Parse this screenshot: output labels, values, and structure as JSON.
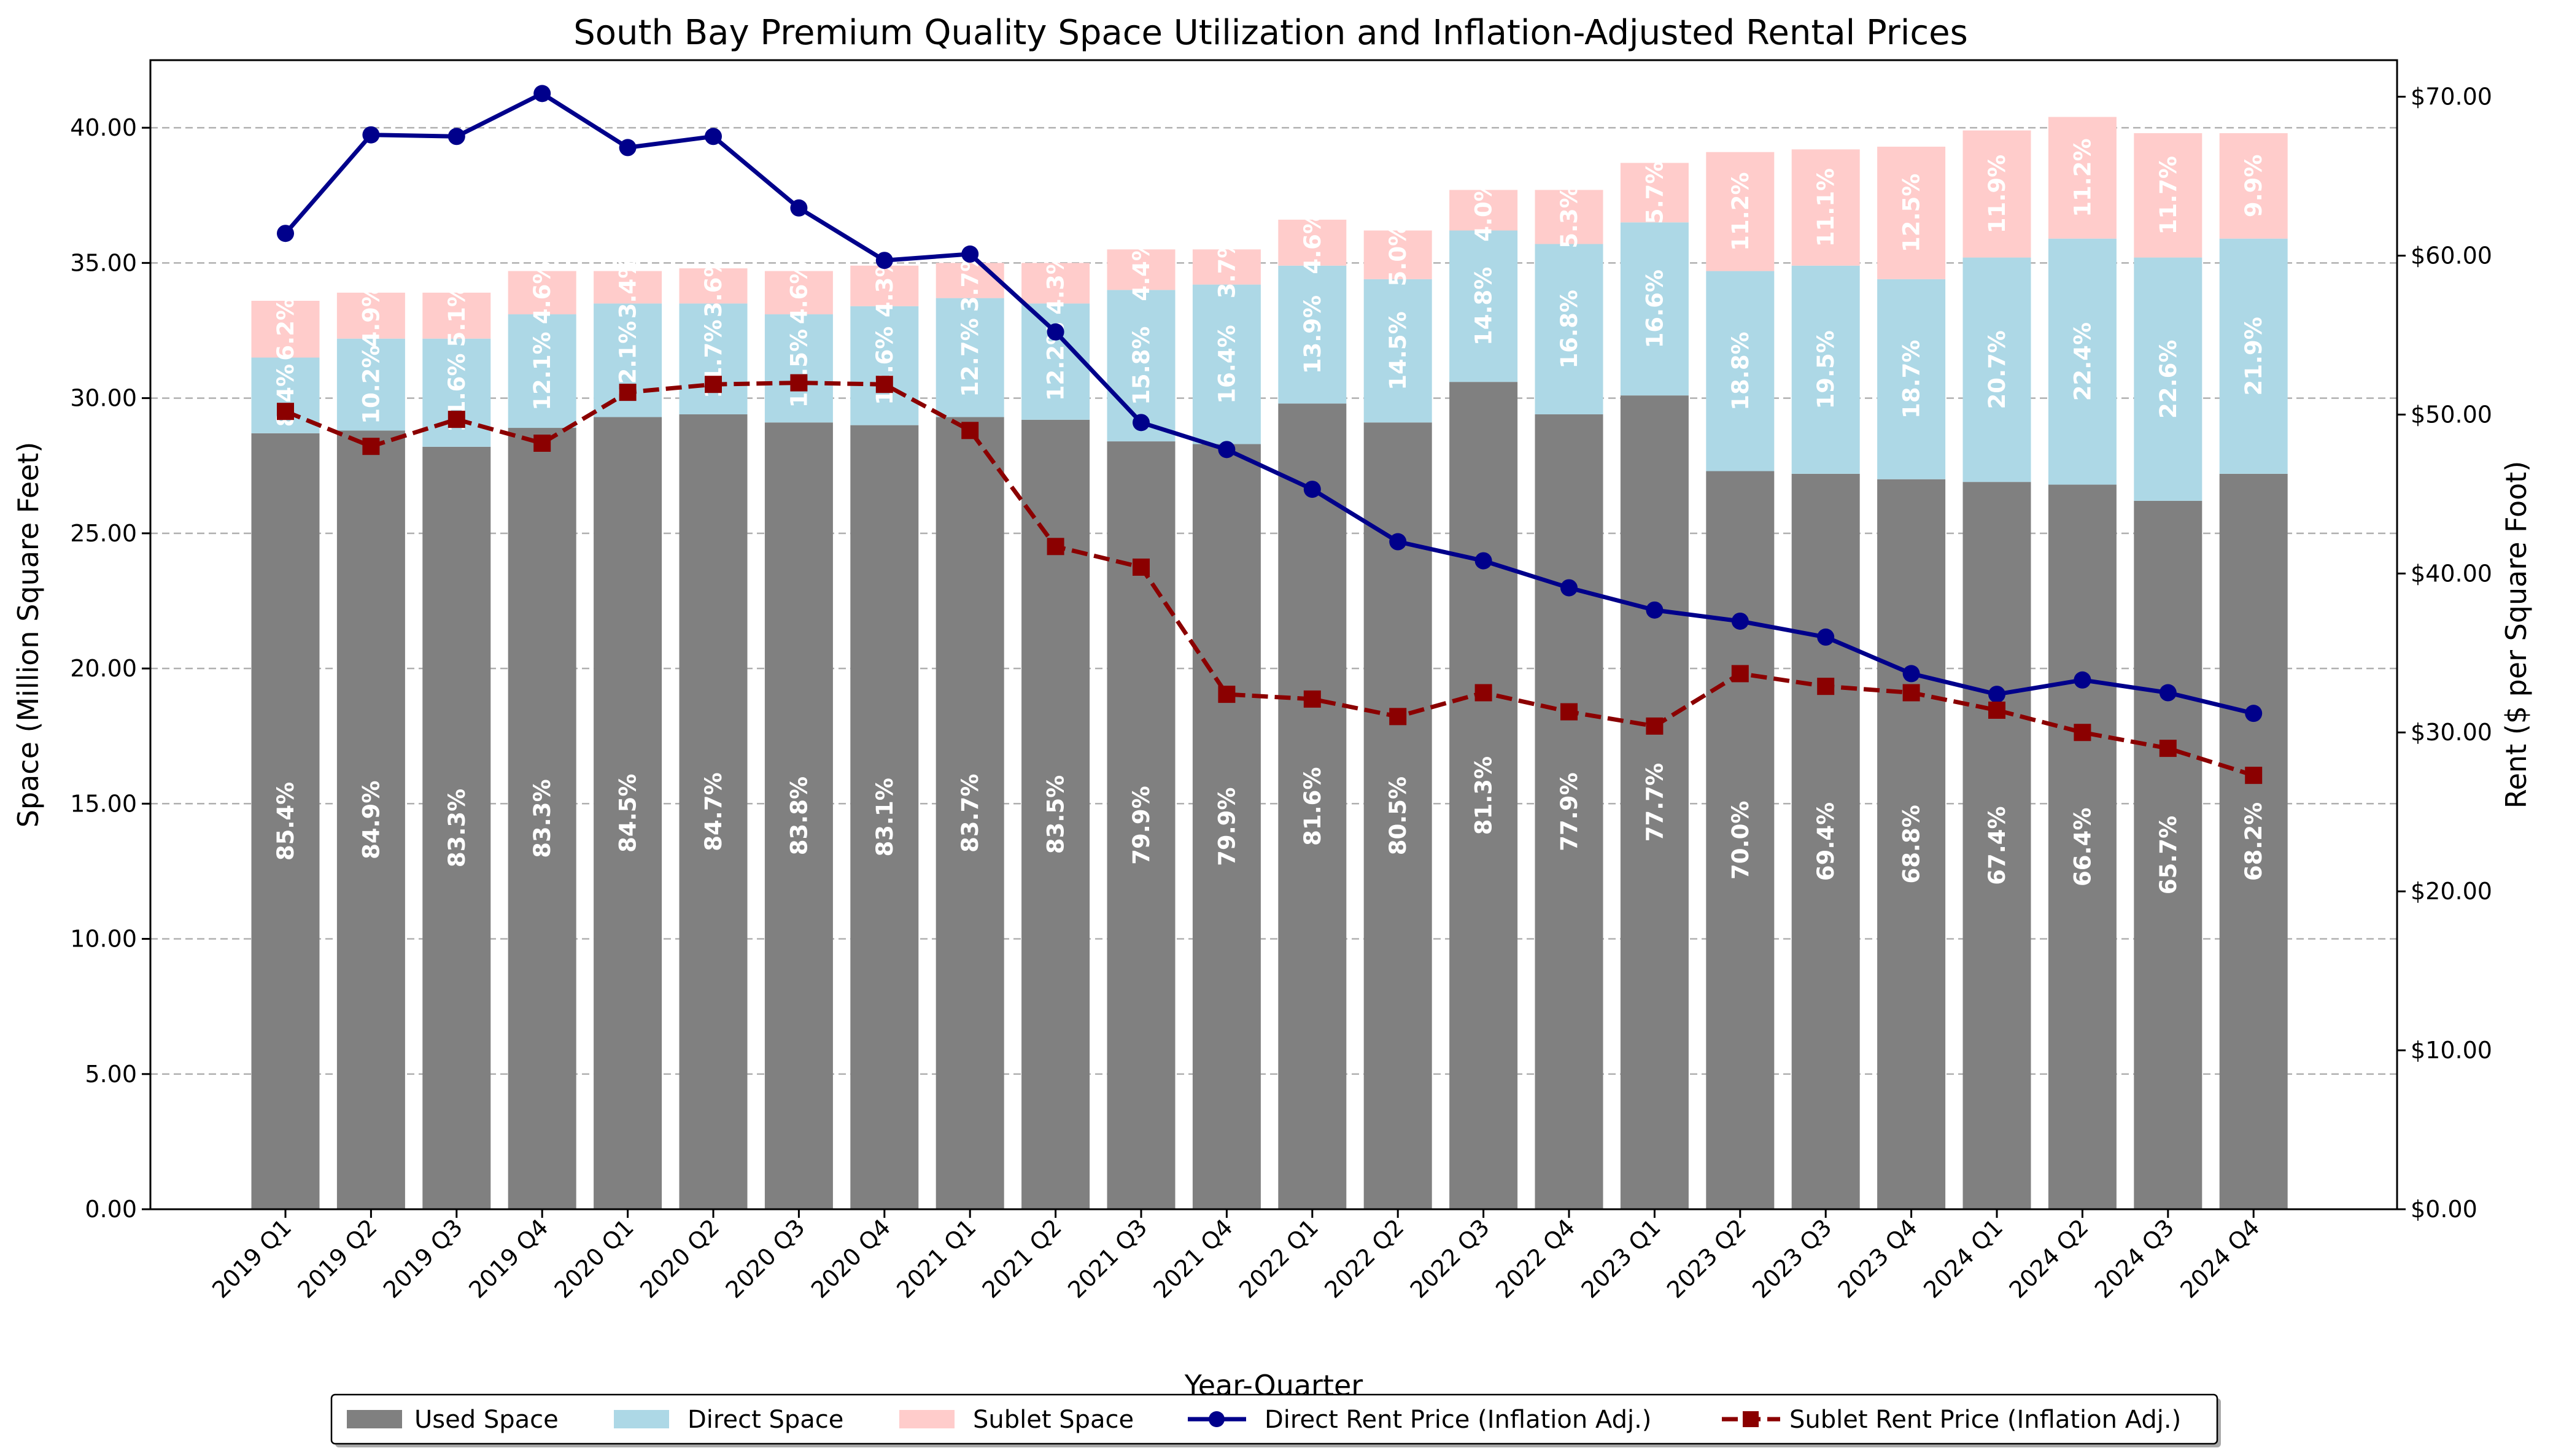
{
  "chart_data": {
    "type": "bar",
    "title": "South Bay Premium Quality Space Utilization and Inflation-Adjusted Rental Prices",
    "xlabel": "Year-Quarter",
    "ylabel": "Space (Million Square Feet)",
    "y2label": "Rent ($ per Square Foot)",
    "ylim": [
      0,
      42.5
    ],
    "y2lim": [
      0,
      72.3
    ],
    "yticks": [
      "0.00",
      "5.00",
      "10.00",
      "15.00",
      "20.00",
      "25.00",
      "30.00",
      "35.00",
      "40.00"
    ],
    "y2ticks": [
      "$0.00",
      "$10.00",
      "$20.00",
      "$30.00",
      "$40.00",
      "$50.00",
      "$60.00",
      "$70.00"
    ],
    "grid": "horizontal dashed",
    "legend_position": "bottom-center",
    "categories": [
      "2019 Q1",
      "2019 Q2",
      "2019 Q3",
      "2019 Q4",
      "2020 Q1",
      "2020 Q2",
      "2020 Q3",
      "2020 Q4",
      "2021 Q1",
      "2021 Q2",
      "2021 Q3",
      "2021 Q4",
      "2022 Q1",
      "2022 Q2",
      "2022 Q3",
      "2022 Q4",
      "2023 Q1",
      "2023 Q2",
      "2023 Q3",
      "2023 Q4",
      "2024 Q1",
      "2024 Q2",
      "2024 Q3",
      "2024 Q4"
    ],
    "series": [
      {
        "name": "Used Space",
        "kind": "bar",
        "color": "#808080",
        "values": [
          28.7,
          28.8,
          28.2,
          28.9,
          29.3,
          29.4,
          29.1,
          29.0,
          29.3,
          29.2,
          28.4,
          28.3,
          29.8,
          29.1,
          30.6,
          29.4,
          30.1,
          27.3,
          27.2,
          27.0,
          26.9,
          26.8,
          26.2,
          27.2
        ],
        "labels": [
          "85.4%",
          "84.9%",
          "83.3%",
          "83.3%",
          "84.5%",
          "84.7%",
          "83.8%",
          "83.1%",
          "83.7%",
          "83.5%",
          "79.9%",
          "79.9%",
          "81.6%",
          "80.5%",
          "81.3%",
          "77.9%",
          "77.7%",
          "70.0%",
          "69.4%",
          "68.8%",
          "67.4%",
          "66.4%",
          "65.7%",
          "68.2%"
        ]
      },
      {
        "name": "Direct Space",
        "kind": "bar",
        "color": "#add8e6",
        "values": [
          2.8,
          3.4,
          4.0,
          4.2,
          4.2,
          4.1,
          4.0,
          4.4,
          4.4,
          4.3,
          5.6,
          5.9,
          5.1,
          5.3,
          5.6,
          6.3,
          6.4,
          7.4,
          7.7,
          7.4,
          8.3,
          9.1,
          9.0,
          8.7
        ],
        "labels": [
          "8.4%",
          "10.2%",
          "11.6%",
          "12.1%",
          "12.1%",
          "11.7%",
          "11.5%",
          "12.6%",
          "12.7%",
          "12.2%",
          "15.8%",
          "16.4%",
          "13.9%",
          "14.5%",
          "14.8%",
          "16.8%",
          "16.6%",
          "18.8%",
          "19.5%",
          "18.7%",
          "20.7%",
          "22.4%",
          "22.6%",
          "21.9%"
        ]
      },
      {
        "name": "Sublet Space",
        "kind": "bar",
        "color": "#ffcccb",
        "values": [
          2.1,
          1.7,
          1.7,
          1.6,
          1.2,
          1.3,
          1.6,
          1.5,
          1.3,
          1.5,
          1.5,
          1.3,
          1.7,
          1.8,
          1.5,
          2.0,
          2.2,
          4.4,
          4.3,
          4.9,
          4.7,
          4.5,
          4.6,
          3.9
        ],
        "labels": [
          "6.2%",
          "4.9%",
          "5.1%",
          "4.6%",
          "3.4%",
          "3.6%",
          "4.6%",
          "4.3%",
          "3.7%",
          "4.3%",
          "4.4%",
          "3.7%",
          "4.6%",
          "5.0%",
          "4.0%",
          "5.3%",
          "5.7%",
          "11.2%",
          "11.1%",
          "12.5%",
          "11.9%",
          "11.2%",
          "11.7%",
          "9.9%"
        ]
      },
      {
        "name": "Direct Rent Price (Inflation Adj.)",
        "kind": "line",
        "axis": "right",
        "color": "#00008b",
        "marker": "circle",
        "line": "solid",
        "values": [
          61.4,
          67.6,
          67.5,
          70.2,
          66.8,
          67.5,
          63.0,
          59.7,
          60.1,
          55.2,
          49.5,
          47.8,
          45.3,
          42.0,
          40.8,
          39.1,
          37.7,
          37.0,
          36.0,
          33.7,
          32.4,
          33.3,
          32.5,
          31.2
        ]
      },
      {
        "name": "Sublet Rent Price (Inflation Adj.)",
        "kind": "line",
        "axis": "right",
        "color": "#8b0000",
        "marker": "square",
        "line": "dashed",
        "values": [
          50.2,
          48.0,
          49.7,
          48.2,
          51.4,
          51.9,
          52.0,
          51.9,
          49.0,
          41.7,
          40.4,
          32.4,
          32.1,
          31.0,
          32.5,
          31.3,
          30.4,
          33.7,
          32.9,
          32.5,
          31.4,
          30.0,
          29.0,
          27.3
        ]
      }
    ]
  }
}
